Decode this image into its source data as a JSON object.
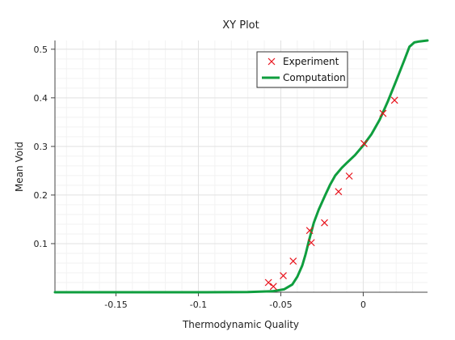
{
  "chart_data": {
    "type": "scatter",
    "title": "XY Plot",
    "xlabel": "Thermodynamic Quality",
    "ylabel": "Mean Void",
    "xlim": [
      -0.187,
      0.039
    ],
    "ylim": [
      0.0,
      0.518
    ],
    "x_ticks": [
      -0.15,
      -0.1,
      -0.05,
      0
    ],
    "x_tick_labels": [
      "-0.15",
      "-0.1",
      "-0.05",
      "0"
    ],
    "y_ticks": [
      0.1,
      0.2,
      0.3,
      0.4,
      0.5
    ],
    "y_tick_labels": [
      "0.1",
      "0.2",
      "0.3",
      "0.4",
      "0.5"
    ],
    "grid": true,
    "legend_position": "top-right",
    "series": [
      {
        "name": "Experiment",
        "kind": "scatter",
        "marker": "x",
        "color": "#e8121b",
        "x": [
          -0.0575,
          -0.0545,
          -0.0485,
          -0.0425,
          -0.0325,
          -0.0315,
          -0.0235,
          -0.015,
          -0.0085,
          0.0005,
          0.012,
          0.019
        ],
        "y": [
          0.02,
          0.012,
          0.034,
          0.064,
          0.127,
          0.102,
          0.143,
          0.207,
          0.239,
          0.306,
          0.368,
          0.395
        ]
      },
      {
        "name": "Computation",
        "kind": "line",
        "color": "#0f9e3e",
        "x": [
          -0.187,
          -0.1,
          -0.07,
          -0.055,
          -0.048,
          -0.043,
          -0.04,
          -0.037,
          -0.035,
          -0.033,
          -0.03,
          -0.027,
          -0.023,
          -0.02,
          -0.017,
          -0.013,
          -0.01,
          -0.005,
          0.0,
          0.005,
          0.01,
          0.015,
          0.02,
          0.025,
          0.028,
          0.031,
          0.034,
          0.039
        ],
        "y": [
          0.0,
          0.0,
          0.0005,
          0.002,
          0.006,
          0.016,
          0.032,
          0.055,
          0.078,
          0.105,
          0.143,
          0.17,
          0.2,
          0.222,
          0.24,
          0.256,
          0.266,
          0.282,
          0.302,
          0.325,
          0.355,
          0.393,
          0.435,
          0.478,
          0.505,
          0.514,
          0.516,
          0.518
        ]
      }
    ]
  }
}
